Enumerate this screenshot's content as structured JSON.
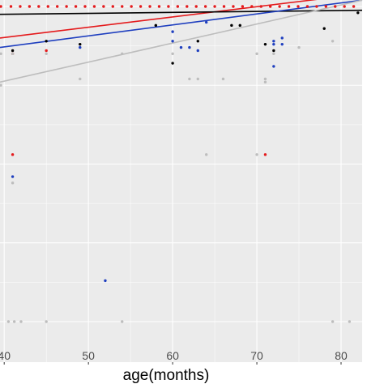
{
  "chart_data": {
    "type": "scatter",
    "xlabel": "age(months)",
    "ylabel": "",
    "title": "",
    "xlim": [
      39.5,
      82.5
    ],
    "ylim": [
      0,
      1.03
    ],
    "x_ticks": [
      40,
      50,
      60,
      70,
      80
    ],
    "x_tick_labels": [
      "40",
      "50",
      "60",
      "70",
      "80"
    ],
    "grid": true,
    "legend": "none",
    "colors": {
      "panel": "#ebebeb",
      "grid": "#ffffff",
      "black": "#000000",
      "red": "#e41a1c",
      "blue": "#1f3fbf",
      "grey": "#bdbdbd"
    },
    "series": [
      {
        "color_key": "red",
        "points": [
          [
            39.6,
            1.0
          ],
          [
            40.8,
            1.0
          ],
          [
            41.9,
            1.0
          ],
          [
            43.0,
            1.0
          ],
          [
            44.1,
            1.0
          ],
          [
            45.2,
            1.0
          ],
          [
            46.3,
            1.0
          ],
          [
            47.4,
            1.0
          ],
          [
            48.5,
            1.0
          ],
          [
            49.6,
            1.0
          ],
          [
            50.7,
            1.0
          ],
          [
            51.8,
            1.0
          ],
          [
            52.9,
            1.0
          ],
          [
            54.0,
            1.0
          ],
          [
            55.1,
            1.0
          ],
          [
            56.2,
            1.0
          ],
          [
            57.3,
            1.0
          ],
          [
            58.4,
            1.0
          ],
          [
            59.5,
            1.0
          ],
          [
            60.6,
            1.0
          ],
          [
            61.7,
            1.0
          ],
          [
            62.8,
            1.0
          ],
          [
            63.9,
            1.0
          ],
          [
            65.0,
            1.0
          ],
          [
            66.1,
            1.0
          ],
          [
            67.2,
            1.0
          ],
          [
            68.3,
            1.0
          ],
          [
            69.4,
            1.0
          ],
          [
            70.5,
            1.0
          ],
          [
            71.6,
            1.0
          ],
          [
            72.7,
            1.0
          ],
          [
            73.8,
            1.0
          ],
          [
            74.9,
            1.0
          ],
          [
            76.0,
            1.0
          ],
          [
            77.1,
            1.0
          ],
          [
            78.2,
            1.0
          ],
          [
            79.3,
            1.0
          ],
          [
            80.4,
            1.0
          ],
          [
            81.5,
            1.0
          ],
          [
            41.0,
            0.85
          ],
          [
            41.0,
            0.53
          ],
          [
            45.0,
            0.86
          ],
          [
            71.0,
            0.53
          ]
        ],
        "line": [
          [
            39.5,
            0.9
          ],
          [
            82.5,
            1.04
          ]
        ]
      },
      {
        "color_key": "black",
        "points": [
          [
            41.0,
            0.86
          ],
          [
            45.0,
            0.89
          ],
          [
            49.0,
            0.88
          ],
          [
            58.0,
            0.94
          ],
          [
            60.0,
            0.82
          ],
          [
            63.0,
            0.89
          ],
          [
            67.0,
            0.94
          ],
          [
            68.0,
            0.94
          ],
          [
            71.0,
            0.88
          ],
          [
            72.0,
            0.86
          ],
          [
            78.0,
            0.93
          ],
          [
            82.0,
            0.98
          ]
        ],
        "line": [
          [
            39.5,
            0.975
          ],
          [
            82.5,
            0.988
          ]
        ]
      },
      {
        "color_key": "blue",
        "points": [
          [
            41.0,
            0.46
          ],
          [
            49.0,
            0.87
          ],
          [
            52.0,
            0.13
          ],
          [
            60.0,
            0.92
          ],
          [
            60.0,
            0.89
          ],
          [
            61.0,
            0.87
          ],
          [
            62.0,
            0.87
          ],
          [
            63.0,
            0.86
          ],
          [
            64.0,
            0.95
          ],
          [
            72.0,
            0.89
          ],
          [
            72.0,
            0.88
          ],
          [
            72.0,
            0.81
          ],
          [
            73.0,
            0.9
          ],
          [
            73.0,
            0.88
          ]
        ],
        "line": [
          [
            39.5,
            0.87
          ],
          [
            82.5,
            1.02
          ]
        ]
      },
      {
        "color_key": "grey",
        "points": [
          [
            39.6,
            0.85
          ],
          [
            39.6,
            0.75
          ],
          [
            41.0,
            0.85
          ],
          [
            41.0,
            0.44
          ],
          [
            45.0,
            0.85
          ],
          [
            49.0,
            0.77
          ],
          [
            54.0,
            0.85
          ],
          [
            60.0,
            0.85
          ],
          [
            62.0,
            0.77
          ],
          [
            63.0,
            0.77
          ],
          [
            64.0,
            0.53
          ],
          [
            66.0,
            0.77
          ],
          [
            70.0,
            0.85
          ],
          [
            70.0,
            0.53
          ],
          [
            71.0,
            0.77
          ],
          [
            71.0,
            0.76
          ],
          [
            72.0,
            0.85
          ],
          [
            75.0,
            0.87
          ],
          [
            79.0,
            0.89
          ],
          [
            40.5,
            0.0
          ],
          [
            41.2,
            0.0
          ],
          [
            42.0,
            0.0
          ],
          [
            45.0,
            0.0
          ],
          [
            54.0,
            0.0
          ],
          [
            79.0,
            0.0
          ],
          [
            81.0,
            0.0
          ]
        ],
        "line": [
          [
            39.5,
            0.76
          ],
          [
            82.5,
            1.02
          ]
        ]
      }
    ]
  }
}
